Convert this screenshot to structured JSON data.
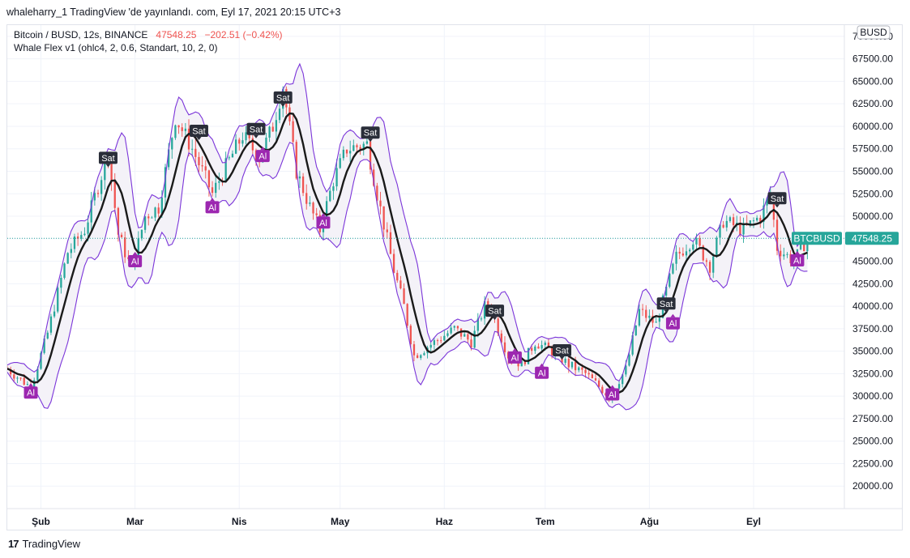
{
  "publication": {
    "text": "whaleharry_1 TradingView 'de yayınlandı. com, Eyl 17, 2021 20:15 UTC+3"
  },
  "symbol": {
    "name": "Bitcoin / BUSD, 12s, BINANCE",
    "price": "47548.25",
    "change": "−202.51 (−0.42%)"
  },
  "indicator": {
    "name": "Whale Flex v1 (ohlc4, 2, 0.6, Standart, 10, 2, 0)"
  },
  "footer": {
    "logo_text": "17",
    "brand": "TradingView"
  },
  "colors": {
    "up": "#26a69a",
    "down": "#ef5350",
    "band": "#7b35d9",
    "band_fill": "#f4f2f8",
    "mid_line": "#1a1a1a",
    "price_line": "#26a69a",
    "sell_badge": "#2a2e39",
    "buy_badge": "#9c27b0",
    "grid": "#f0f3fa"
  },
  "chart_data": {
    "type": "candlestick",
    "series_label": "BTCBUSD",
    "last_price": 47548.25,
    "ylim": [
      17500,
      71250
    ],
    "y_ticks": [
      20000,
      22500,
      25000,
      27500,
      30000,
      32500,
      35000,
      37500,
      40000,
      42500,
      45000,
      47500,
      50000,
      52500,
      55000,
      57500,
      60000,
      62500,
      65000,
      67500,
      70000
    ],
    "y_tick_labels": [
      "20000.00",
      "22500.00",
      "25000.00",
      "27500.00",
      "30000.00",
      "32500.00",
      "35000.00",
      "37500.00",
      "40000.00",
      "42500.00",
      "45000.00",
      "47500.00",
      "50000.00",
      "52500.00",
      "55000.00",
      "57500.00",
      "60000.00",
      "62500.00",
      "65000.00",
      "67500.00",
      "70000.00"
    ],
    "x_ticks": [
      "2021-02-01",
      "2021-03-01",
      "2021-04-01",
      "2021-05-01",
      "2021-06-01",
      "2021-07-01",
      "2021-08-01",
      "2021-09-01"
    ],
    "x_tick_labels": [
      "Şub",
      "Mar",
      "Nis",
      "May",
      "Haz",
      "Tem",
      "Ağu",
      "Eyl"
    ],
    "x_range": [
      "2021-01-22",
      "2021-09-28"
    ],
    "currency_badge": "BUSD",
    "price_key_points": [
      [
        "2021-01-22",
        33000
      ],
      [
        "2021-01-29",
        31000
      ],
      [
        "2021-02-03",
        37000
      ],
      [
        "2021-02-09",
        46000
      ],
      [
        "2021-02-14",
        48500
      ],
      [
        "2021-02-21",
        57000
      ],
      [
        "2021-02-24",
        48000
      ],
      [
        "2021-02-28",
        44000
      ],
      [
        "2021-03-04",
        50000
      ],
      [
        "2021-03-08",
        51000
      ],
      [
        "2021-03-13",
        61000
      ],
      [
        "2021-03-18",
        57500
      ],
      [
        "2021-03-24",
        52500
      ],
      [
        "2021-03-28",
        55500
      ],
      [
        "2021-04-02",
        59000
      ],
      [
        "2021-04-07",
        56500
      ],
      [
        "2021-04-11",
        60000
      ],
      [
        "2021-04-14",
        64500
      ],
      [
        "2021-04-18",
        55000
      ],
      [
        "2021-04-22",
        51000
      ],
      [
        "2021-04-25",
        48500
      ],
      [
        "2021-04-29",
        54000
      ],
      [
        "2021-05-03",
        57500
      ],
      [
        "2021-05-09",
        58000
      ],
      [
        "2021-05-12",
        52500
      ],
      [
        "2021-05-17",
        44000
      ],
      [
        "2021-05-20",
        40000
      ],
      [
        "2021-05-23",
        34500
      ],
      [
        "2021-05-29",
        36000
      ],
      [
        "2021-06-04",
        37500
      ],
      [
        "2021-06-09",
        36000
      ],
      [
        "2021-06-13",
        40000
      ],
      [
        "2021-06-15",
        39500
      ],
      [
        "2021-06-20",
        34500
      ],
      [
        "2021-06-24",
        33500
      ],
      [
        "2021-06-28",
        36000
      ],
      [
        "2021-07-03",
        35000
      ],
      [
        "2021-07-08",
        33500
      ],
      [
        "2021-07-13",
        32500
      ],
      [
        "2021-07-20",
        30000
      ],
      [
        "2021-07-25",
        33000
      ],
      [
        "2021-07-29",
        39500
      ],
      [
        "2021-08-03",
        38000
      ],
      [
        "2021-08-09",
        45500
      ],
      [
        "2021-08-14",
        47500
      ],
      [
        "2021-08-19",
        44500
      ],
      [
        "2021-08-23",
        49500
      ],
      [
        "2021-08-29",
        48500
      ],
      [
        "2021-09-03",
        50000
      ],
      [
        "2021-09-06",
        52500
      ],
      [
        "2021-09-08",
        46500
      ],
      [
        "2021-09-13",
        45000
      ],
      [
        "2021-09-17",
        47548.25
      ]
    ],
    "signals": [
      {
        "type": "sell",
        "label": "Sat",
        "date": "2021-02-21",
        "price": 56500
      },
      {
        "type": "sell",
        "label": "Sat",
        "date": "2021-03-20",
        "price": 59500
      },
      {
        "type": "sell",
        "label": "Sat",
        "date": "2021-04-06",
        "price": 59700
      },
      {
        "type": "sell",
        "label": "Sat",
        "date": "2021-04-14",
        "price": 63200
      },
      {
        "type": "sell",
        "label": "Sat",
        "date": "2021-05-10",
        "price": 59300
      },
      {
        "type": "sell",
        "label": "Sat",
        "date": "2021-06-16",
        "price": 39500
      },
      {
        "type": "sell",
        "label": "Sat",
        "date": "2021-07-06",
        "price": 35100
      },
      {
        "type": "sell",
        "label": "Sat",
        "date": "2021-08-06",
        "price": 40300
      },
      {
        "type": "sell",
        "label": "Sat",
        "date": "2021-09-08",
        "price": 52000
      },
      {
        "type": "buy",
        "label": "Al",
        "date": "2021-01-29",
        "price": 30400
      },
      {
        "type": "buy",
        "label": "Al",
        "date": "2021-03-01",
        "price": 45000
      },
      {
        "type": "buy",
        "label": "Al",
        "date": "2021-03-24",
        "price": 51000
      },
      {
        "type": "buy",
        "label": "Al",
        "date": "2021-04-08",
        "price": 56700
      },
      {
        "type": "buy",
        "label": "Al",
        "date": "2021-04-26",
        "price": 49300
      },
      {
        "type": "buy",
        "label": "Al",
        "date": "2021-06-22",
        "price": 34300
      },
      {
        "type": "buy",
        "label": "Al",
        "date": "2021-06-30",
        "price": 32600
      },
      {
        "type": "buy",
        "label": "Al",
        "date": "2021-07-21",
        "price": 30200
      },
      {
        "type": "buy",
        "label": "Al",
        "date": "2021-08-08",
        "price": 38100
      },
      {
        "type": "buy",
        "label": "Al",
        "date": "2021-09-14",
        "price": 45100
      }
    ]
  }
}
